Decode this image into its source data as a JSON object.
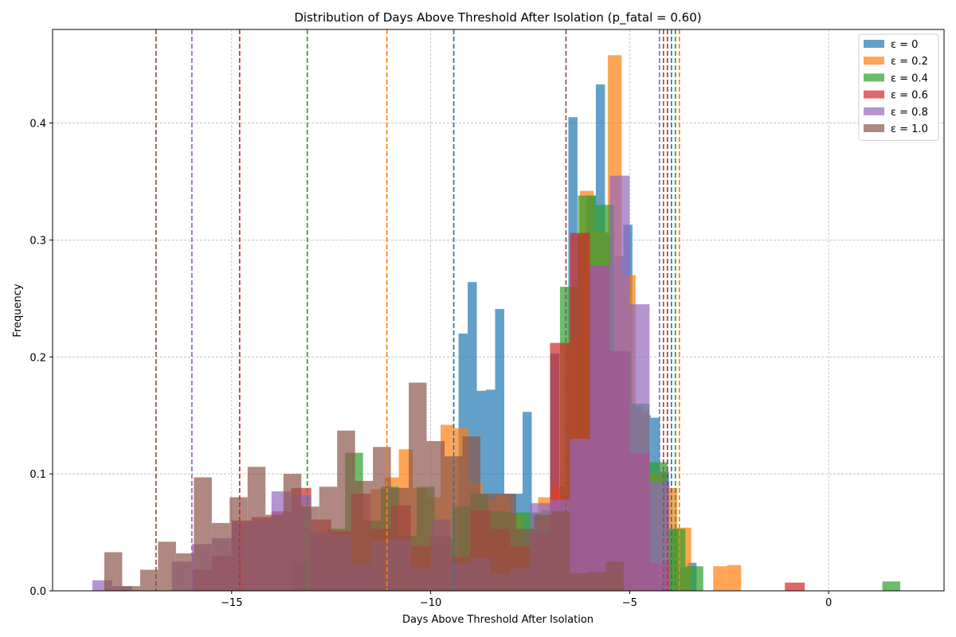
{
  "chart_data": {
    "type": "histogram",
    "title": "Distribution of Days Above Threshold After Isolation (p_fatal = 0.60)",
    "xlabel": "Days Above Threshold After Isolation",
    "ylabel": "Frequency",
    "xlim": [
      -19.5,
      2.9
    ],
    "ylim": [
      0,
      0.48
    ],
    "xticks": [
      -15,
      -10,
      -5,
      0
    ],
    "xtick_labels": [
      "−15",
      "−10",
      "−5",
      "0"
    ],
    "yticks": [
      0.0,
      0.1,
      0.2,
      0.3,
      0.4
    ],
    "ytick_labels": [
      "0.0",
      "0.1",
      "0.2",
      "0.3",
      "0.4"
    ],
    "grid": true,
    "legend_position": "top-right",
    "bar_opacity": 0.7,
    "series": [
      {
        "name": "ε = 0",
        "color": "#1f77b4",
        "mean_line": -9.42,
        "bins": [
          [
            -9.3,
            -9.07,
            0.22
          ],
          [
            -9.07,
            -8.84,
            0.264
          ],
          [
            -8.84,
            -8.61,
            0.171
          ],
          [
            -8.61,
            -8.38,
            0.172
          ],
          [
            -8.38,
            -8.15,
            0.241
          ],
          [
            -8.15,
            -7.92,
            0.083
          ],
          [
            -7.92,
            -7.69,
            0.083
          ],
          [
            -7.69,
            -7.46,
            0.153
          ],
          [
            -7.46,
            -7.23,
            0.066
          ],
          [
            -7.23,
            -7.0,
            0.054
          ],
          [
            -7.0,
            -6.77,
            0.203
          ],
          [
            -6.77,
            -6.54,
            0.066
          ],
          [
            -6.54,
            -6.31,
            0.405
          ],
          [
            -6.31,
            -6.08,
            0.305
          ],
          [
            -6.08,
            -5.85,
            0.338
          ],
          [
            -5.85,
            -5.62,
            0.433
          ],
          [
            -5.62,
            -5.39,
            0.305
          ],
          [
            -5.39,
            -5.16,
            0.286
          ],
          [
            -5.16,
            -4.93,
            0.313
          ],
          [
            -4.93,
            -4.7,
            0.158
          ],
          [
            -4.7,
            -4.47,
            0.15
          ],
          [
            -4.47,
            -4.24,
            0.148
          ],
          [
            -4.24,
            -4.01,
            0.102
          ],
          [
            -4.01,
            -3.78,
            0.053
          ],
          [
            -3.78,
            -3.55,
            0.02
          ],
          [
            -3.55,
            -3.32,
            0.024
          ]
        ]
      },
      {
        "name": "ε = 0.2",
        "color": "#ff7f0e",
        "mean_line": -11.1,
        "bins": [
          [
            -11.5,
            -11.15,
            0.087
          ],
          [
            -11.15,
            -10.8,
            0.097
          ],
          [
            -10.8,
            -10.45,
            0.121
          ],
          [
            -10.45,
            -10.1,
            0.088
          ],
          [
            -10.1,
            -9.75,
            0.08
          ],
          [
            -9.75,
            -9.4,
            0.142
          ],
          [
            -9.4,
            -9.05,
            0.139
          ],
          [
            -9.05,
            -8.7,
            0.092
          ],
          [
            -8.7,
            -8.35,
            0.078
          ],
          [
            -8.35,
            -8.0,
            0.082
          ],
          [
            -8.0,
            -7.65,
            0.065
          ],
          [
            -7.65,
            -7.3,
            0.03
          ],
          [
            -7.3,
            -6.95,
            0.08
          ],
          [
            -6.95,
            -6.6,
            0.089
          ],
          [
            -6.6,
            -6.25,
            0.212
          ],
          [
            -6.25,
            -5.9,
            0.342
          ],
          [
            -5.9,
            -5.55,
            0.307
          ],
          [
            -5.55,
            -5.2,
            0.458
          ],
          [
            -5.2,
            -4.85,
            0.27
          ],
          [
            -4.85,
            -4.5,
            0.153
          ],
          [
            -4.5,
            -4.15,
            0.1
          ],
          [
            -4.15,
            -3.8,
            0.088
          ],
          [
            -3.8,
            -3.45,
            0.054
          ],
          [
            -2.9,
            -2.55,
            0.021
          ],
          [
            -2.55,
            -2.2,
            0.022
          ]
        ]
      },
      {
        "name": "ε = 0.4",
        "color": "#2ca02c",
        "mean_line": -13.1,
        "bins": [
          [
            -13.5,
            -13.05,
            0.025
          ],
          [
            -13.05,
            -12.6,
            0.049
          ],
          [
            -12.6,
            -12.15,
            0.053
          ],
          [
            -12.15,
            -11.7,
            0.118
          ],
          [
            -11.7,
            -11.25,
            0.06
          ],
          [
            -11.25,
            -10.8,
            0.089
          ],
          [
            -10.8,
            -10.35,
            0.047
          ],
          [
            -10.35,
            -9.9,
            0.089
          ],
          [
            -9.9,
            -9.45,
            0.044
          ],
          [
            -9.45,
            -9.0,
            0.072
          ],
          [
            -9.0,
            -8.55,
            0.083
          ],
          [
            -8.55,
            -8.1,
            0.068
          ],
          [
            -8.1,
            -7.65,
            0.067
          ],
          [
            -7.65,
            -7.2,
            0.067
          ],
          [
            -7.2,
            -6.75,
            0.069
          ],
          [
            -6.75,
            -6.3,
            0.26
          ],
          [
            -6.3,
            -5.85,
            0.338
          ],
          [
            -5.85,
            -5.4,
            0.33
          ],
          [
            -5.4,
            -4.95,
            0.204
          ],
          [
            -4.95,
            -4.5,
            0.16
          ],
          [
            -4.5,
            -4.05,
            0.11
          ],
          [
            -4.05,
            -3.6,
            0.053
          ],
          [
            -3.6,
            -3.15,
            0.021
          ],
          [
            1.35,
            1.8,
            0.008
          ]
        ]
      },
      {
        "name": "ε = 0.6",
        "color": "#d62728",
        "mean_line": -14.8,
        "bins": [
          [
            -16.0,
            -15.5,
            0.018
          ],
          [
            -15.5,
            -15.0,
            0.03
          ],
          [
            -15.0,
            -14.5,
            0.06
          ],
          [
            -14.5,
            -14.0,
            0.063
          ],
          [
            -14.0,
            -13.5,
            0.068
          ],
          [
            -13.5,
            -13.0,
            0.088
          ],
          [
            -13.0,
            -12.5,
            0.061
          ],
          [
            -12.5,
            -12.0,
            0.051
          ],
          [
            -12.0,
            -11.5,
            0.083
          ],
          [
            -11.5,
            -11.0,
            0.053
          ],
          [
            -11.0,
            -10.5,
            0.073
          ],
          [
            -10.5,
            -10.0,
            0.038
          ],
          [
            -10.0,
            -9.5,
            0.047
          ],
          [
            -9.5,
            -9.0,
            0.029
          ],
          [
            -9.0,
            -8.5,
            0.069
          ],
          [
            -8.5,
            -8.0,
            0.053
          ],
          [
            -8.0,
            -7.5,
            0.038
          ],
          [
            -7.5,
            -7.0,
            0.049
          ],
          [
            -7.0,
            -6.5,
            0.212
          ],
          [
            -6.5,
            -6.0,
            0.306
          ],
          [
            -6.0,
            -5.5,
            0.278
          ],
          [
            -5.5,
            -5.0,
            0.205
          ],
          [
            -5.0,
            -4.5,
            0.118
          ],
          [
            -4.5,
            -4.0,
            0.024
          ],
          [
            -1.1,
            -0.6,
            0.007
          ]
        ]
      },
      {
        "name": "ε = 0.8",
        "color": "#9467bd",
        "mean_line": -16.0,
        "bins": [
          [
            -18.5,
            -18.0,
            0.009
          ],
          [
            -18.0,
            -17.5,
            0.004
          ],
          [
            -16.5,
            -16.0,
            0.025
          ],
          [
            -16.0,
            -15.5,
            0.04
          ],
          [
            -15.5,
            -15.0,
            0.045
          ],
          [
            -15.0,
            -14.5,
            0.058
          ],
          [
            -14.5,
            -14.0,
            0.06
          ],
          [
            -14.0,
            -13.5,
            0.085
          ],
          [
            -13.5,
            -13.0,
            0.082
          ],
          [
            -13.0,
            -12.5,
            0.05
          ],
          [
            -12.5,
            -12.0,
            0.048
          ],
          [
            -12.0,
            -11.5,
            0.022
          ],
          [
            -11.5,
            -11.0,
            0.043
          ],
          [
            -11.0,
            -10.5,
            0.044
          ],
          [
            -10.5,
            -10.0,
            0.02
          ],
          [
            -10.0,
            -9.5,
            0.061
          ],
          [
            -9.5,
            -9.0,
            0.023
          ],
          [
            -9.0,
            -8.5,
            0.028
          ],
          [
            -8.5,
            -8.0,
            0.015
          ],
          [
            -8.0,
            -7.5,
            0.02
          ],
          [
            -7.5,
            -7.0,
            0.075
          ],
          [
            -7.0,
            -6.5,
            0.078
          ],
          [
            -6.5,
            -6.0,
            0.13
          ],
          [
            -6.0,
            -5.5,
            0.278
          ],
          [
            -5.5,
            -5.0,
            0.355
          ],
          [
            -5.0,
            -4.5,
            0.245
          ],
          [
            -4.5,
            -4.0,
            0.093
          ]
        ]
      },
      {
        "name": "ε = 1.0",
        "color": "#8c564b",
        "mean_line": -16.9,
        "bins": [
          [
            -18.2,
            -17.75,
            0.033
          ],
          [
            -17.75,
            -17.3,
            0.004
          ],
          [
            -17.3,
            -16.85,
            0.018
          ],
          [
            -16.85,
            -16.4,
            0.042
          ],
          [
            -16.4,
            -15.95,
            0.032
          ],
          [
            -15.95,
            -15.5,
            0.097
          ],
          [
            -15.5,
            -15.05,
            0.058
          ],
          [
            -15.05,
            -14.6,
            0.08
          ],
          [
            -14.6,
            -14.15,
            0.106
          ],
          [
            -14.15,
            -13.7,
            0.065
          ],
          [
            -13.7,
            -13.25,
            0.1
          ],
          [
            -13.25,
            -12.8,
            0.072
          ],
          [
            -12.8,
            -12.35,
            0.089
          ],
          [
            -12.35,
            -11.9,
            0.137
          ],
          [
            -11.9,
            -11.45,
            0.094
          ],
          [
            -11.45,
            -11.0,
            0.123
          ],
          [
            -11.0,
            -10.55,
            0.088
          ],
          [
            -10.55,
            -10.1,
            0.178
          ],
          [
            -10.1,
            -9.65,
            0.128
          ],
          [
            -9.65,
            -9.2,
            0.115
          ],
          [
            -9.2,
            -8.75,
            0.132
          ],
          [
            -8.75,
            -8.3,
            0.083
          ],
          [
            -8.3,
            -7.85,
            0.083
          ],
          [
            -7.85,
            -7.4,
            0.053
          ],
          [
            -7.4,
            -6.95,
            0.065
          ],
          [
            -6.95,
            -6.5,
            0.068
          ],
          [
            -6.5,
            -6.05,
            0.015
          ],
          [
            -6.05,
            -5.6,
            0.016
          ],
          [
            -5.6,
            -5.15,
            0.025
          ]
        ],
        "mean_line_2": -6.6
      }
    ],
    "mean_lines_right": [
      {
        "series": "ε = 0.8",
        "x": -4.25
      },
      {
        "series": "ε = 1.0",
        "x": -4.15
      },
      {
        "series": "ε = 0.6",
        "x": -4.05
      },
      {
        "series": "ε = 0",
        "x": -3.95
      },
      {
        "series": "ε = 0.4",
        "x": -3.85
      },
      {
        "series": "ε = 0.2",
        "x": -3.75
      }
    ]
  }
}
